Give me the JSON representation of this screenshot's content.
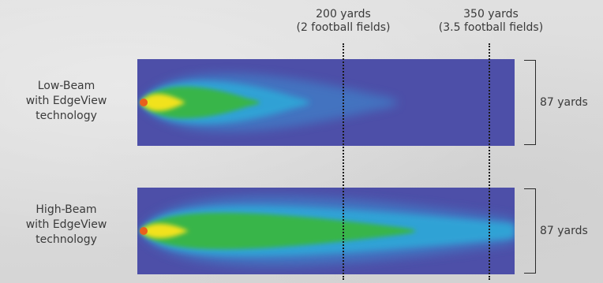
{
  "markers": [
    {
      "line1": "200 yards",
      "line2": "(2 football fields)"
    },
    {
      "line1": "350 yards",
      "line2": "(3.5 football fields)"
    }
  ],
  "rows": [
    {
      "label_line1": "Low-Beam",
      "label_line2": "with EdgeView",
      "label_line3": "technology",
      "width_label": "87 yards"
    },
    {
      "label_line1": "High-Beam",
      "label_line2": "with EdgeView",
      "label_line3": "technology",
      "width_label": "87 yards"
    }
  ],
  "colors": {
    "field_background": "#4d4fa8",
    "beam_outer": "#2fa7d8",
    "beam_mid": "#39b54a",
    "beam_core": "#f2e21c",
    "beam_hot": "#e8601c",
    "dotted_line": "#1a1a1a"
  }
}
